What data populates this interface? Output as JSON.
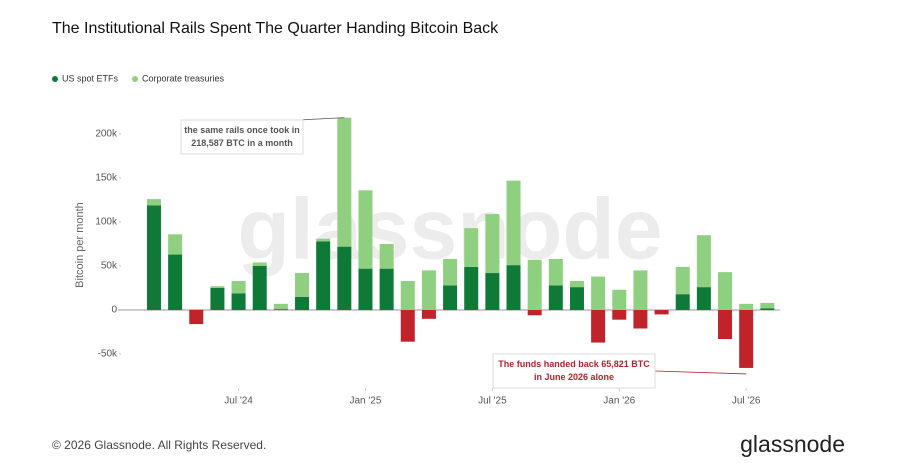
{
  "chart_data": {
    "type": "bar",
    "stacked": true,
    "title": "The Institutional Rails Spent The Quarter Handing Bitcoin Back",
    "y_label": "Bitcoin per month",
    "x": [
      "2024-02",
      "2024-03",
      "2024-04",
      "2024-05",
      "2024-06",
      "2024-07",
      "2024-08",
      "2024-09",
      "2024-10",
      "2024-11",
      "2024-12",
      "2025-01",
      "2025-02",
      "2025-03",
      "2025-04",
      "2025-05",
      "2025-06",
      "2025-07",
      "2025-08",
      "2025-09",
      "2025-10",
      "2025-11",
      "2025-12",
      "2026-01",
      "2026-02",
      "2026-03",
      "2026-04",
      "2026-05",
      "2026-06",
      "2026-07"
    ],
    "xticks": [
      {
        "value": "2024-07",
        "label": "Jul '24"
      },
      {
        "value": "2025-01",
        "label": "Jan '25"
      },
      {
        "value": "2025-07",
        "label": "Jul '25"
      },
      {
        "value": "2026-01",
        "label": "Jan '26"
      },
      {
        "value": "2026-07",
        "label": "Jul '26"
      }
    ],
    "ylim": [
      -85000,
      225000
    ],
    "yticks": [
      {
        "value": -50000,
        "label": "-50k"
      },
      0,
      {
        "value": 50000,
        "label": "50k"
      },
      {
        "value": 100000,
        "label": "100k"
      },
      {
        "value": 150000,
        "label": "150k"
      },
      {
        "value": 200000,
        "label": "200k"
      }
    ],
    "grid": false,
    "legend": "top-left",
    "negative_color": "#c1232b",
    "series": [
      {
        "name": "US spot ETFs",
        "color": "#0f7a37",
        "values": [
          119000,
          63000,
          -16000,
          25000,
          19000,
          50000,
          1000,
          15000,
          78000,
          72000,
          47000,
          47000,
          -36000,
          -10000,
          28000,
          49000,
          42000,
          51000,
          -6000,
          28000,
          26000,
          -37000,
          -11000,
          -21000,
          -5000,
          18000,
          26000,
          -33000,
          -65821,
          2000
        ]
      },
      {
        "name": "Corporate treasuries",
        "color": "#8fcf80",
        "values": [
          7000,
          23000,
          1000,
          2000,
          14000,
          4000,
          6000,
          27000,
          3000,
          146587,
          89000,
          28000,
          33000,
          45000,
          30000,
          44000,
          67000,
          96000,
          57000,
          30000,
          7000,
          38000,
          23000,
          45000,
          0,
          31000,
          59000,
          43000,
          7000,
          6000
        ]
      }
    ],
    "annotations": [
      {
        "lines": [
          "the same rails once took in",
          "218,587 BTC in a month"
        ],
        "target": "2024-11"
      },
      {
        "lines": [
          "The funds handed back 65,821 BTC",
          "in June 2026 alone"
        ],
        "target": "2026-06"
      }
    ],
    "watermark": "glassnode",
    "footer": "© 2026 Glassnode. All Rights Reserved.",
    "logo": "glassnode"
  }
}
